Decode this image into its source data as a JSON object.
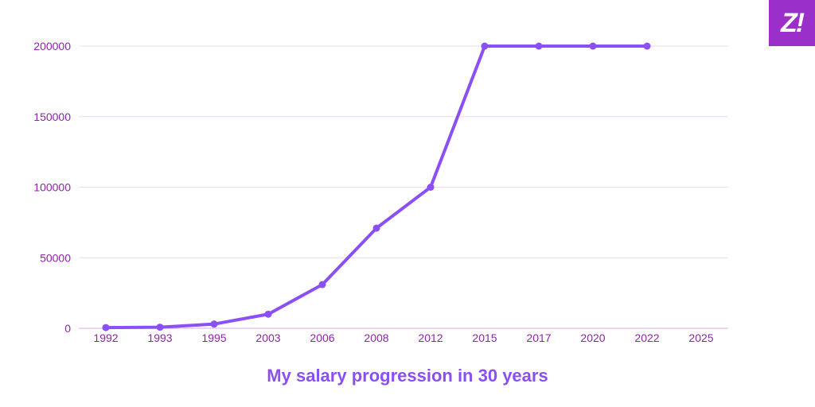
{
  "logo": {
    "text": "Z!"
  },
  "colors": {
    "line": "#8a4ff5",
    "tick": "#8e24aa",
    "grid": "#ecd9f5",
    "axis": "#d9a8ee",
    "logo_bg": "#9b2fc9"
  },
  "chart_data": {
    "type": "line",
    "title": "My salary progression in 30 years",
    "xlabel": "",
    "ylabel": "",
    "categories": [
      "1992",
      "1993",
      "1995",
      "2003",
      "2006",
      "2008",
      "2012",
      "2015",
      "2017",
      "2020",
      "2022",
      "2025"
    ],
    "series": [
      {
        "values": [
          500,
          800,
          3000,
          10000,
          31000,
          71000,
          100000,
          200000,
          200000,
          200000,
          200000,
          null
        ]
      }
    ],
    "y_ticks": [
      "0",
      "50000",
      "100000",
      "150000",
      "200000"
    ],
    "ylim": [
      0,
      200000
    ],
    "grid": true,
    "legend": "none"
  }
}
